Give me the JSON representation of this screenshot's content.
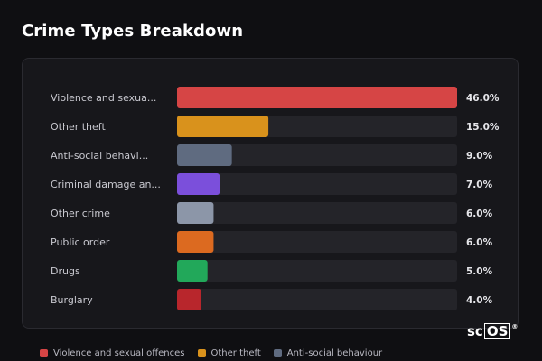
{
  "title": "Crime Types Breakdown",
  "chart_data": {
    "type": "bar",
    "orientation": "horizontal",
    "categories": [
      "Violence and sexua...",
      "Other theft",
      "Anti-social behavi...",
      "Criminal damage an...",
      "Other crime",
      "Public order",
      "Drugs",
      "Burglary"
    ],
    "values": [
      46.0,
      15.0,
      9.0,
      7.0,
      6.0,
      6.0,
      5.0,
      4.0
    ],
    "value_labels": [
      "46.0%",
      "15.0%",
      "9.0%",
      "7.0%",
      "6.0%",
      "6.0%",
      "5.0%",
      "4.0%"
    ],
    "colors": [
      "#d64545",
      "#d9921c",
      "#5f6b80",
      "#7b4fdb",
      "#8c96a8",
      "#dc6a20",
      "#22a85a",
      "#b8262c"
    ],
    "xlim": [
      0,
      46
    ],
    "grid": false,
    "legend_position": "bottom-left"
  },
  "legend": [
    {
      "label": "Violence and sexual offences",
      "color": "#d64545"
    },
    {
      "label": "Other theft",
      "color": "#d9921c"
    },
    {
      "label": "Anti-social behaviour",
      "color": "#5f6b80"
    }
  ],
  "logo": {
    "pre": "sc",
    "boxed": "OS",
    "reg": "®"
  },
  "track_color": "#242429"
}
